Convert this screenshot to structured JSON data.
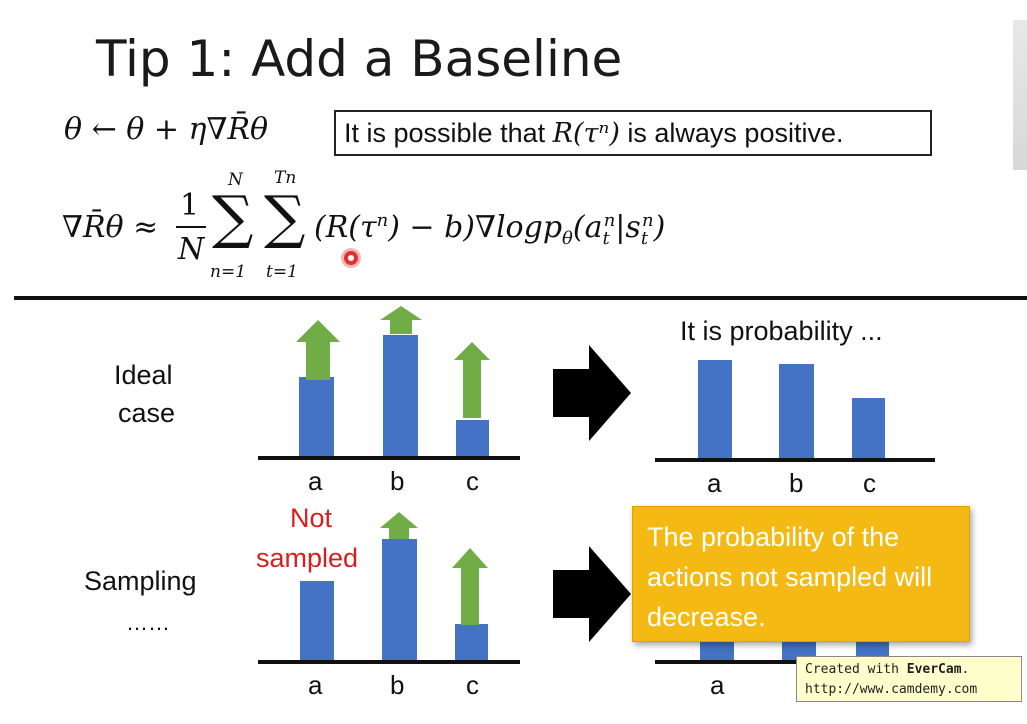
{
  "slide": {
    "title": "Tip 1: Add a Baseline",
    "update_rule": "θ ← θ + η∇R̄θ",
    "note_prefix": "It is possible that ",
    "note_math": "R(τⁿ)",
    "note_suffix": " is always positive.",
    "gradient_lhs": "∇R̄θ ≈",
    "frac_num": "1",
    "frac_den": "N",
    "gradient_rhs": "∑∑(R(τⁿ) − b)∇logpθ(aₜⁿ|sₜⁿ)",
    "sum1_top": "N",
    "sum1_bottom": "n=1",
    "sum2_top": "Tn",
    "sum2_bottom": "t=1"
  },
  "ideal": {
    "label_line1": "Ideal",
    "label_line2": "case",
    "categories": [
      "a",
      "b",
      "c"
    ],
    "result_caption": "It is probability ..."
  },
  "sampling": {
    "label_line1": "Sampling",
    "label_line2": "……",
    "not_sampled": "Not\nsampled",
    "not_sampled_1": "Not",
    "not_sampled_2": "sampled",
    "categories": [
      "a",
      "b",
      "c"
    ],
    "popup": "The probability of the actions not sampled will decrease."
  },
  "watermark": {
    "line1_prefix": "Created with ",
    "line1_brand": "EverCam",
    "line1_suffix": ".",
    "line2": "http://www.camdemy.com"
  },
  "colors": {
    "bar": "#4472c4",
    "arrow_up": "#70ad47",
    "popup": "#f5b914",
    "not_sampled": "#d62020",
    "cursor": "#e03030"
  },
  "icons": {
    "big_arrow": "right-arrow-icon",
    "up_arrow": "up-arrow-icon",
    "cursor": "cursor-marker-icon"
  }
}
